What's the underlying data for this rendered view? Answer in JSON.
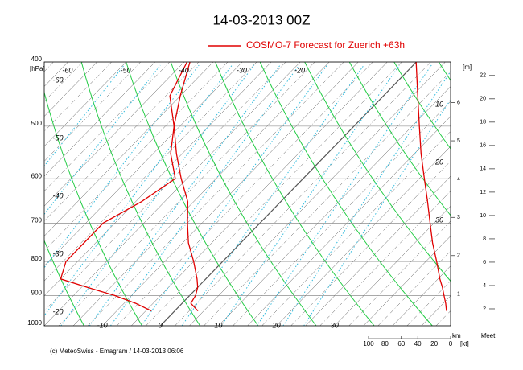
{
  "chart_data": {
    "type": "emagram",
    "title": "14-03-2013  00Z",
    "legend_label": "COSMO-7 Forecast for Zuerich    +63h",
    "footer": "(c) MeteoSwiss - Emagram  /  14-03-2013  06:06",
    "y_unit": "[hPa]",
    "yscale": "log",
    "ylim": [
      1000,
      400
    ],
    "yticks": [
      400,
      500,
      600,
      700,
      800,
      900,
      1000
    ],
    "xlim": [
      -20,
      50
    ],
    "xticks_bottom": [
      -10,
      0,
      10,
      20,
      30
    ],
    "xticks_top": [
      -60,
      -50,
      -40,
      -30,
      -20
    ],
    "left_labels": [
      -60,
      -50,
      -40,
      -30,
      -20
    ],
    "right_labels": [
      10,
      20,
      30
    ],
    "m_label": "[m]",
    "km_label": "km",
    "km_lim": [
      0,
      7.06
    ],
    "km_ticks": [
      1,
      2,
      3,
      4,
      5,
      6
    ],
    "kfeet_label": "kfeet",
    "kfeet_lim": [
      0,
      23.16
    ],
    "kfeet_ticks": [
      2,
      4,
      6,
      8,
      10,
      12,
      14,
      16,
      18,
      20,
      22
    ],
    "wind_unit": "[kt]",
    "wind_lim": [
      100,
      0
    ],
    "wind_ticks": [
      100,
      80,
      60,
      40,
      20,
      0
    ],
    "pressure": [
      400,
      450,
      500,
      550,
      600,
      650,
      700,
      750,
      800,
      850,
      875,
      900,
      925,
      950
    ],
    "series": [
      {
        "name": "temperature",
        "color": "#e00000",
        "values": [
          -39,
          -35,
          -31,
          -26,
          -21,
          -16,
          -12.5,
          -9,
          -5,
          -1.5,
          0,
          1,
          1.5,
          4
        ]
      },
      {
        "name": "dewpoint",
        "color": "#e00000",
        "values": [
          -39.5,
          -36.8,
          -31,
          -27,
          -22,
          -24,
          -27,
          -27,
          -27,
          -25,
          -19,
          -13,
          -8,
          -4
        ]
      },
      {
        "name": "wind speed",
        "axis": "wind",
        "color": "#e00000",
        "values": [
          42,
          40,
          38,
          36,
          32,
          28,
          25,
          22,
          17,
          13,
          10,
          8,
          6,
          5
        ]
      }
    ],
    "grid": true
  }
}
